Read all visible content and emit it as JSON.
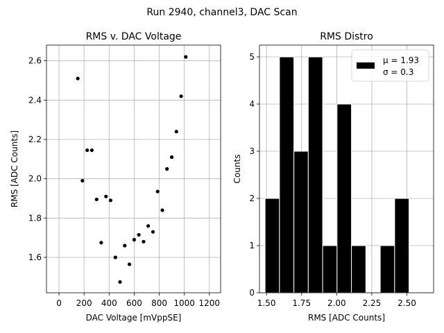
{
  "figure": {
    "suptitle": "Run 2940, channel3, DAC Scan"
  },
  "chart_data": [
    {
      "type": "scatter",
      "title": "RMS v. DAC Voltage",
      "xlabel": "DAC Voltage [mVppSE]",
      "ylabel": "RMS [ADC Counts]",
      "xlim": [
        -100,
        1290
      ],
      "ylim": [
        1.42,
        2.68
      ],
      "xticks": [
        0,
        200,
        400,
        600,
        800,
        1000,
        1200
      ],
      "yticks": [
        1.6,
        1.8,
        2.0,
        2.2,
        2.4,
        2.6
      ],
      "ytick_labels": [
        "1.6",
        "1.8",
        "2.0",
        "2.2",
        "2.4",
        "2.6"
      ],
      "grid": true,
      "marker_color": "#000000",
      "points": [
        {
          "x": 150,
          "y": 2.51
        },
        {
          "x": 187,
          "y": 1.99
        },
        {
          "x": 225,
          "y": 2.145
        },
        {
          "x": 262,
          "y": 2.145
        },
        {
          "x": 300,
          "y": 1.895
        },
        {
          "x": 337,
          "y": 1.675
        },
        {
          "x": 375,
          "y": 1.91
        },
        {
          "x": 412,
          "y": 1.89
        },
        {
          "x": 450,
          "y": 1.6
        },
        {
          "x": 487,
          "y": 1.475
        },
        {
          "x": 525,
          "y": 1.66
        },
        {
          "x": 562,
          "y": 1.565
        },
        {
          "x": 600,
          "y": 1.69
        },
        {
          "x": 637,
          "y": 1.715
        },
        {
          "x": 675,
          "y": 1.68
        },
        {
          "x": 712,
          "y": 1.76
        },
        {
          "x": 750,
          "y": 1.73
        },
        {
          "x": 787,
          "y": 1.935
        },
        {
          "x": 825,
          "y": 1.84
        },
        {
          "x": 862,
          "y": 2.05
        },
        {
          "x": 900,
          "y": 2.11
        },
        {
          "x": 937,
          "y": 2.24
        },
        {
          "x": 975,
          "y": 2.42
        },
        {
          "x": 1012,
          "y": 2.62
        }
      ]
    },
    {
      "type": "bar",
      "subtype": "histogram",
      "title": "RMS Distro",
      "xlabel": "RMS [ADC Counts]",
      "ylabel": "Counts",
      "xlim": [
        1.45,
        2.69
      ],
      "ylim": [
        0,
        5.25
      ],
      "xticks": [
        1.5,
        1.75,
        2.0,
        2.25,
        2.5
      ],
      "xtick_labels": [
        "1.50",
        "1.75",
        "2.00",
        "2.25",
        "2.50"
      ],
      "yticks": [
        0,
        1,
        2,
        3,
        4,
        5
      ],
      "grid": true,
      "bar_color": "#000000",
      "bar_edge_color": "#ffffff",
      "bins": [
        {
          "left": 1.49,
          "right": 1.5925,
          "count": 2
        },
        {
          "left": 1.5925,
          "right": 1.695,
          "count": 5
        },
        {
          "left": 1.695,
          "right": 1.7975,
          "count": 3
        },
        {
          "left": 1.7975,
          "right": 1.9,
          "count": 5
        },
        {
          "left": 1.9,
          "right": 2.0025,
          "count": 1
        },
        {
          "left": 2.0025,
          "right": 2.105,
          "count": 4
        },
        {
          "left": 2.105,
          "right": 2.2075,
          "count": 1
        },
        {
          "left": 2.2075,
          "right": 2.31,
          "count": 0
        },
        {
          "left": 2.31,
          "right": 2.4125,
          "count": 1
        },
        {
          "left": 2.4125,
          "right": 2.515,
          "count": 2
        }
      ],
      "legend": {
        "placement": "upper right",
        "lines": [
          "μ = 1.93",
          "σ = 0.3"
        ]
      }
    }
  ]
}
